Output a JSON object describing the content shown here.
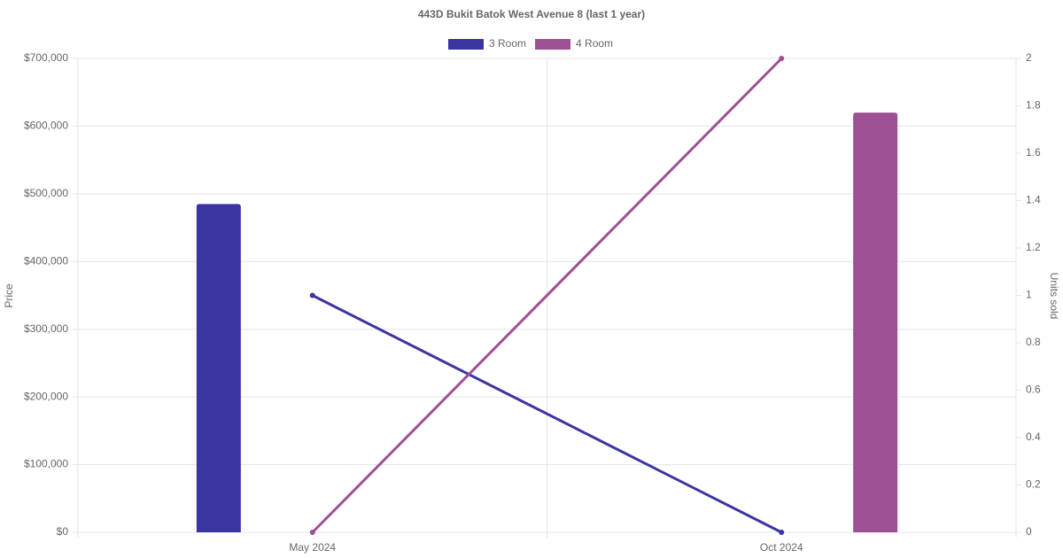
{
  "chart_data": {
    "type": "bar-line",
    "title": "443D Bukit Batok West Avenue 8 (last 1 year)",
    "categories": [
      "May 2024",
      "Oct 2024"
    ],
    "series": [
      {
        "name": "3 Room",
        "color": "#3a35a0",
        "values": [
          485000,
          null
        ],
        "units_sold": [
          1,
          0
        ]
      },
      {
        "name": "4 Room",
        "color": "#9e5095",
        "values": [
          null,
          620000
        ],
        "units_sold": [
          0,
          2
        ]
      }
    ],
    "y_label": "Price",
    "y2_label": "Units sold",
    "ylim": [
      0,
      700000
    ],
    "yticks": [
      {
        "value": 0,
        "label": "$0"
      },
      {
        "value": 100000,
        "label": "$100,000"
      },
      {
        "value": 200000,
        "label": "$200,000"
      },
      {
        "value": 300000,
        "label": "$300,000"
      },
      {
        "value": 400000,
        "label": "$400,000"
      },
      {
        "value": 500000,
        "label": "$500,000"
      },
      {
        "value": 600000,
        "label": "$600,000"
      },
      {
        "value": 700000,
        "label": "$700,000"
      }
    ],
    "y2lim": [
      0,
      2
    ],
    "y2ticks": [
      0,
      0.2,
      0.4,
      0.6,
      0.8,
      1,
      1.2,
      1.4,
      1.6,
      1.8,
      2
    ],
    "grid": true
  }
}
